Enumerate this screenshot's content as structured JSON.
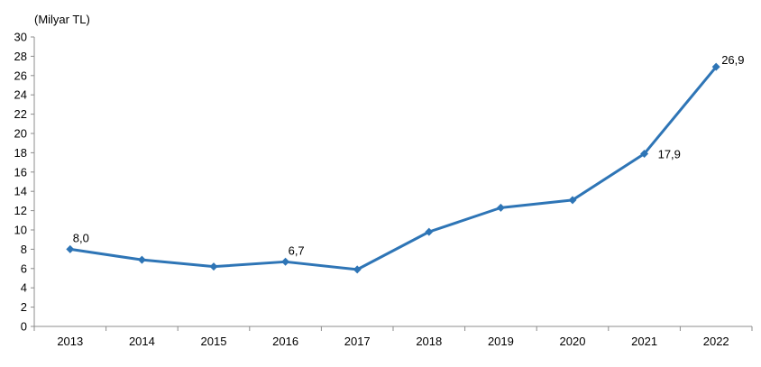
{
  "chart_data": {
    "type": "line",
    "title": "",
    "unit_label": "(Milyar TL)",
    "xlabel": "",
    "ylabel": "",
    "categories": [
      "2013",
      "2014",
      "2015",
      "2016",
      "2017",
      "2018",
      "2019",
      "2020",
      "2021",
      "2022"
    ],
    "series": [
      {
        "values": [
          8.0,
          6.9,
          6.2,
          6.7,
          5.9,
          9.8,
          12.3,
          13.1,
          17.9,
          26.9
        ],
        "color": "#2E75B6"
      }
    ],
    "data_labels": [
      {
        "index": 0,
        "text": "8,0"
      },
      {
        "index": 3,
        "text": "6,7"
      },
      {
        "index": 8,
        "text": "17,9"
      },
      {
        "index": 9,
        "text": "26,9"
      }
    ],
    "ylim": [
      0,
      30
    ],
    "yticks": [
      0,
      2,
      4,
      6,
      8,
      10,
      12,
      14,
      16,
      18,
      20,
      22,
      24,
      26,
      28,
      30
    ],
    "grid": false,
    "legend": "none",
    "marker": "diamond"
  }
}
